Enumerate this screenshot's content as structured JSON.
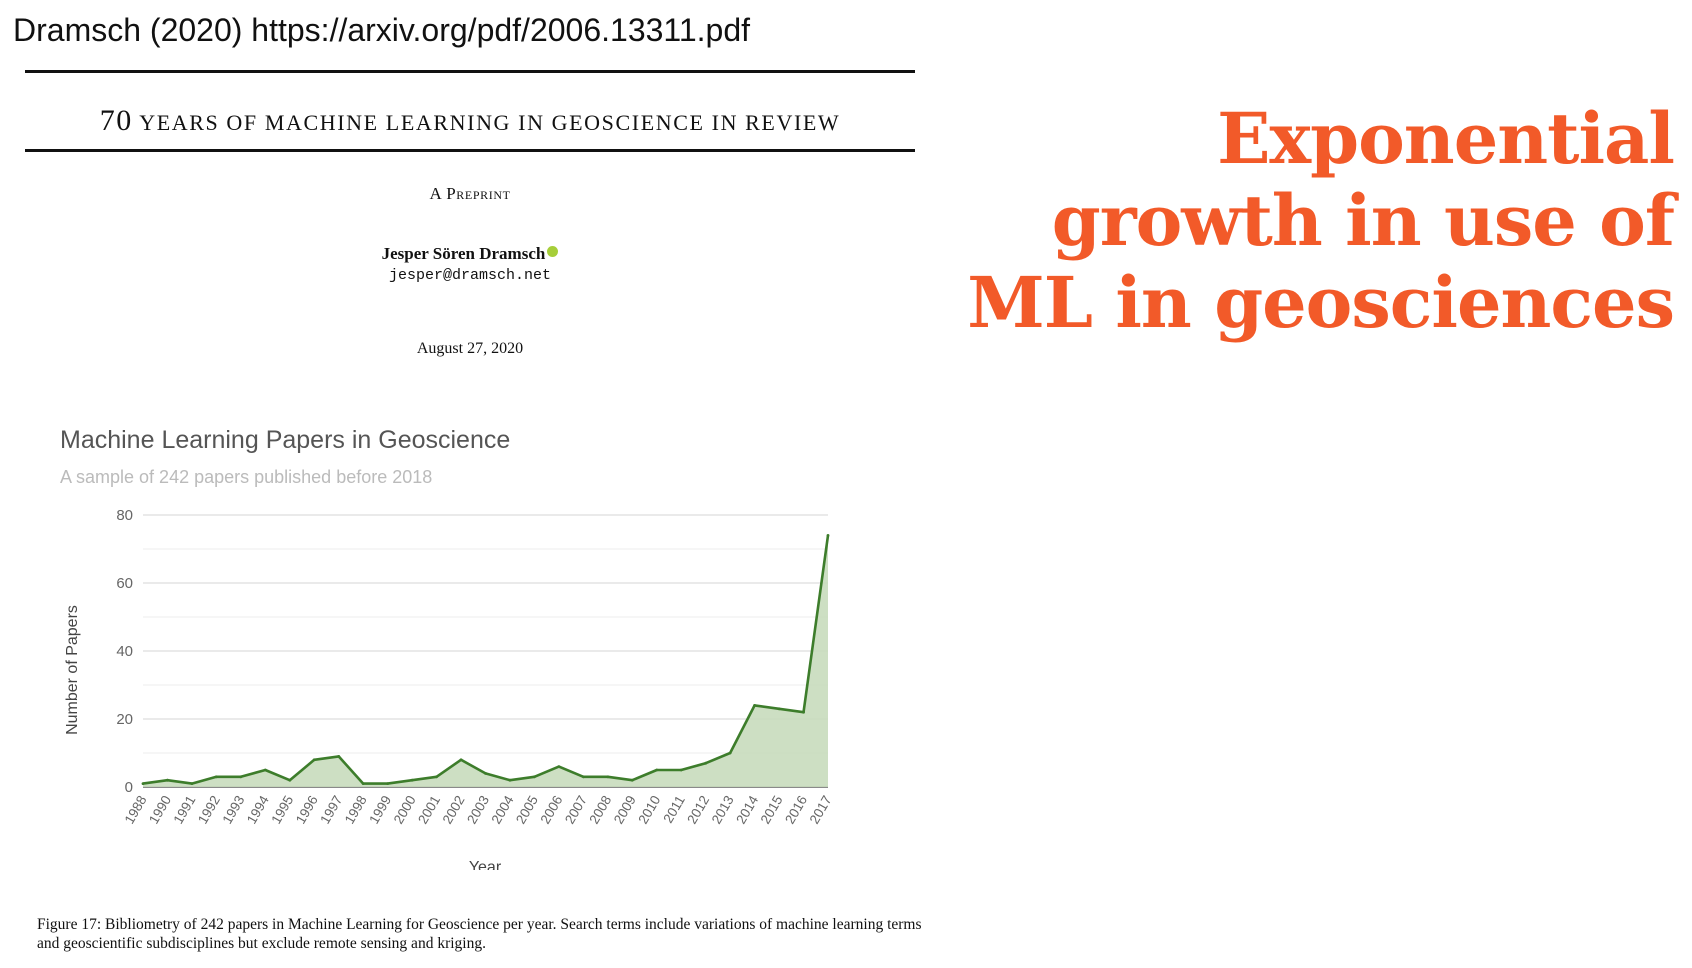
{
  "citation": "Dramsch (2020) https://arxiv.org/pdf/2006.13311.pdf",
  "paper": {
    "title_num": "70",
    "title_rest": "YEARS OF MACHINE LEARNING IN GEOSCIENCE IN REVIEW",
    "preprint": "A Preprint",
    "author": "Jesper Sören Dramsch",
    "email": "jesper@dramsch.net",
    "date": "August 27, 2020",
    "caption": "Figure 17: Bibliometry of 242 papers in Machine Learning for Geoscience per year. Search terms include variations of machine learning terms and geoscientific subdisciplines but exclude remote sensing and kriging."
  },
  "headline": "Exponential growth in use of ML in geosciences",
  "chart_data": {
    "type": "area",
    "title": "Machine Learning Papers in Geoscience",
    "subtitle": "A sample of 242 papers published before 2018",
    "xlabel": "Year",
    "ylabel": "Number of Papers",
    "x": [
      "1988",
      "1990",
      "1991",
      "1992",
      "1993",
      "1994",
      "1995",
      "1996",
      "1997",
      "1998",
      "1999",
      "2000",
      "2001",
      "2002",
      "2003",
      "2004",
      "2005",
      "2006",
      "2007",
      "2008",
      "2009",
      "2010",
      "2011",
      "2012",
      "2013",
      "2014",
      "2015",
      "2016",
      "2017"
    ],
    "values": [
      1,
      2,
      1,
      3,
      3,
      5,
      2,
      8,
      9,
      1,
      1,
      2,
      3,
      8,
      4,
      2,
      3,
      6,
      3,
      3,
      2,
      5,
      5,
      7,
      10,
      24,
      23,
      22,
      74
    ],
    "ylim": [
      0,
      80
    ],
    "yticks": [
      0,
      20,
      40,
      60,
      80
    ],
    "grid": true,
    "colors": {
      "line": "#3d7d2b",
      "fill": "#c8dcbd",
      "grid": "#dddddd",
      "axis": "#444444"
    }
  }
}
